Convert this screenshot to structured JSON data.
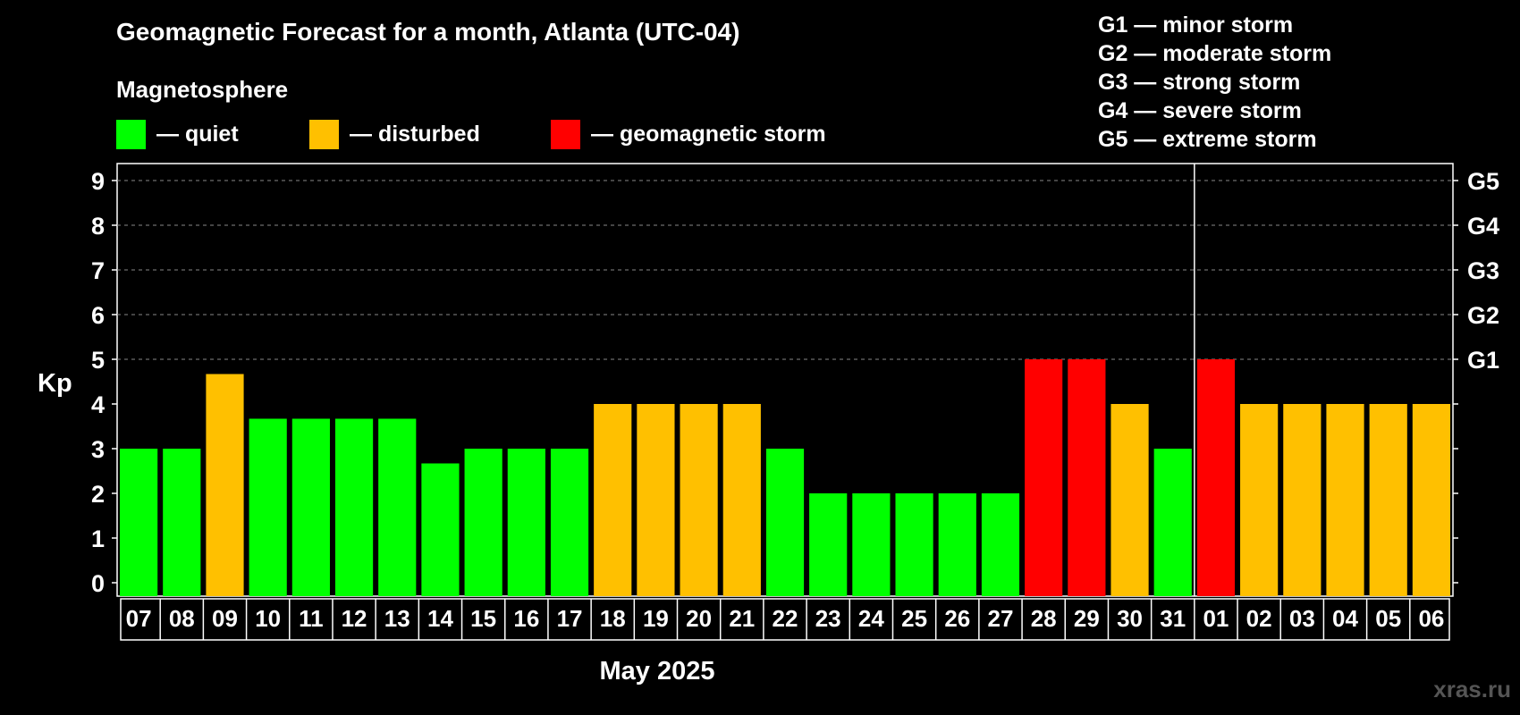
{
  "title": "Geomagnetic Forecast for a month, Atlanta (UTC-04)",
  "subtitle": "Magnetosphere",
  "legend": [
    {
      "label": "— quiet",
      "color": "#00ff00"
    },
    {
      "label": "— disturbed",
      "color": "#ffc000"
    },
    {
      "label": "— geomagnetic storm",
      "color": "#ff0000"
    }
  ],
  "g_scale": [
    "G1 — minor storm",
    "G2 — moderate storm",
    "G3 — strong storm",
    "G4 — severe storm",
    "G5 — extreme storm"
  ],
  "month_label": "May 2025",
  "watermark": "xras.ru",
  "chart_data": {
    "type": "bar",
    "ylabel": "Kp",
    "ylim": [
      0,
      9
    ],
    "y_ticks": [
      "0",
      "1",
      "2",
      "3",
      "4",
      "5",
      "6",
      "7",
      "8",
      "9"
    ],
    "right_labels": [
      {
        "value": 5,
        "label": "G1"
      },
      {
        "value": 6,
        "label": "G2"
      },
      {
        "value": 7,
        "label": "G3"
      },
      {
        "value": 8,
        "label": "G4"
      },
      {
        "value": 9,
        "label": "G5"
      }
    ],
    "grid_values": [
      5,
      6,
      7,
      8,
      9
    ],
    "month_break_after": "31",
    "categories": [
      "07",
      "08",
      "09",
      "10",
      "11",
      "12",
      "13",
      "14",
      "15",
      "16",
      "17",
      "18",
      "19",
      "20",
      "21",
      "22",
      "23",
      "24",
      "25",
      "26",
      "27",
      "28",
      "29",
      "30",
      "31",
      "01",
      "02",
      "03",
      "04",
      "05",
      "06"
    ],
    "values": [
      3,
      3,
      4.67,
      3.67,
      3.67,
      3.67,
      3.67,
      2.67,
      3,
      3,
      3,
      4,
      4,
      4,
      4,
      3,
      2,
      2,
      2,
      2,
      2,
      5,
      5,
      4,
      3,
      5,
      4,
      4,
      4,
      4,
      4
    ],
    "levels": [
      "quiet",
      "quiet",
      "disturbed",
      "quiet",
      "quiet",
      "quiet",
      "quiet",
      "quiet",
      "quiet",
      "quiet",
      "quiet",
      "disturbed",
      "disturbed",
      "disturbed",
      "disturbed",
      "quiet",
      "quiet",
      "quiet",
      "quiet",
      "quiet",
      "quiet",
      "storm",
      "storm",
      "disturbed",
      "quiet",
      "storm",
      "disturbed",
      "disturbed",
      "disturbed",
      "disturbed",
      "disturbed"
    ],
    "colors": {
      "quiet": "#00ff00",
      "disturbed": "#ffc000",
      "storm": "#ff0000"
    }
  }
}
